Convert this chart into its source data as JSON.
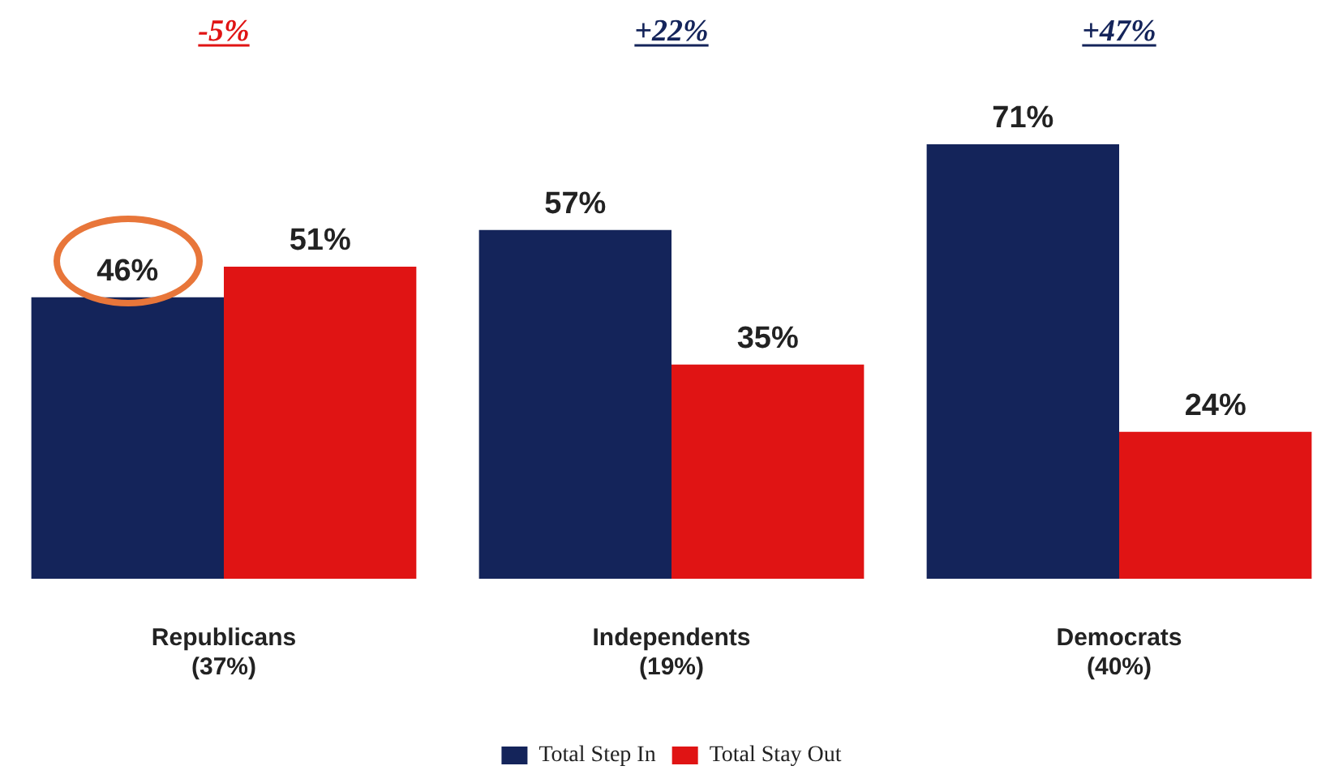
{
  "chart_data": {
    "type": "bar",
    "categories": [
      "Republicans\n(37%)",
      "Independents\n(19%)",
      "Democrats\n(40%)"
    ],
    "series": [
      {
        "name": "Total Step In",
        "color": "#14245a",
        "values": [
          46,
          57,
          71
        ],
        "value_labels": [
          "46%",
          "57%",
          "71%"
        ]
      },
      {
        "name": "Total Stay Out",
        "color": "#e01414",
        "values": [
          51,
          35,
          24
        ],
        "value_labels": [
          "51%",
          "35%",
          "24%"
        ]
      }
    ],
    "annotations": [
      "-5%",
      "+22%",
      "+47%"
    ],
    "legend": "bottom"
  }
}
